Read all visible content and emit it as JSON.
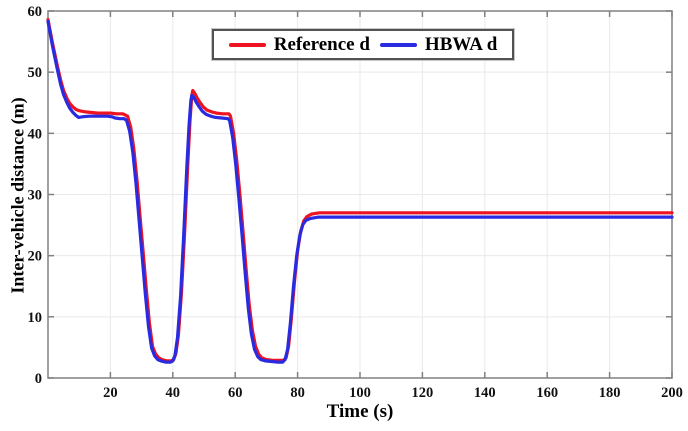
{
  "chart_data": {
    "type": "line",
    "title": "",
    "xlabel": "Time (s)",
    "ylabel": "Inter-vehicle distance (m)",
    "xlim": [
      0,
      200
    ],
    "ylim": [
      0,
      60
    ],
    "xticks": [
      20,
      40,
      60,
      80,
      100,
      120,
      140,
      160,
      180,
      200
    ],
    "yticks": [
      0,
      10,
      20,
      30,
      40,
      50,
      60
    ],
    "grid": true,
    "legend_position": "top-center",
    "axis_color": "#808080",
    "grid_color": "#e9e9e9",
    "series": [
      {
        "name": "Reference d",
        "color": "#ee1320",
        "points": [
          [
            0,
            58.6
          ],
          [
            1.5,
            54.6
          ],
          [
            3,
            51.0
          ],
          [
            4,
            48.8
          ],
          [
            5,
            47.0
          ],
          [
            6,
            45.8
          ],
          [
            7,
            44.9
          ],
          [
            8,
            44.3
          ],
          [
            9,
            43.9
          ],
          [
            10,
            43.7
          ],
          [
            12,
            43.5
          ],
          [
            14,
            43.4
          ],
          [
            16,
            43.3
          ],
          [
            18,
            43.3
          ],
          [
            20,
            43.3
          ],
          [
            22,
            43.2
          ],
          [
            24,
            43.2
          ],
          [
            25.5,
            42.8
          ],
          [
            26.5,
            41.0
          ],
          [
            27.5,
            37.5
          ],
          [
            28.5,
            32.5
          ],
          [
            29.5,
            26.5
          ],
          [
            30.5,
            20.5
          ],
          [
            31.5,
            14.5
          ],
          [
            32.5,
            9.0
          ],
          [
            33.5,
            5.2
          ],
          [
            34.5,
            3.9
          ],
          [
            35.5,
            3.3
          ],
          [
            36.5,
            3.0
          ],
          [
            38,
            2.8
          ],
          [
            39.5,
            2.8
          ],
          [
            40.3,
            3.0
          ],
          [
            41,
            4.0
          ],
          [
            41.8,
            7.0
          ],
          [
            42.8,
            14.0
          ],
          [
            43.8,
            24.0
          ],
          [
            44.8,
            35.0
          ],
          [
            45.5,
            42.0
          ],
          [
            46.1,
            46.2
          ],
          [
            46.4,
            47.0
          ],
          [
            47,
            46.6
          ],
          [
            47.8,
            45.8
          ],
          [
            48.8,
            45.0
          ],
          [
            49.8,
            44.3
          ],
          [
            51,
            43.8
          ],
          [
            52.5,
            43.5
          ],
          [
            54,
            43.3
          ],
          [
            56,
            43.2
          ],
          [
            58,
            43.2
          ],
          [
            58.5,
            42.8
          ],
          [
            59.5,
            40.0
          ],
          [
            60.5,
            35.5
          ],
          [
            61.5,
            30.0
          ],
          [
            62.5,
            24.0
          ],
          [
            63.5,
            17.8
          ],
          [
            64.5,
            12.0
          ],
          [
            65.5,
            7.8
          ],
          [
            66.5,
            5.2
          ],
          [
            67.5,
            3.9
          ],
          [
            68.5,
            3.3
          ],
          [
            70,
            3.0
          ],
          [
            72,
            2.9
          ],
          [
            74,
            2.9
          ],
          [
            75.5,
            2.9
          ],
          [
            76.3,
            3.3
          ],
          [
            77.1,
            5.2
          ],
          [
            78,
            9.8
          ],
          [
            79,
            15.8
          ],
          [
            80,
            20.8
          ],
          [
            81,
            24.0
          ],
          [
            82,
            25.7
          ],
          [
            83,
            26.4
          ],
          [
            84.5,
            26.8
          ],
          [
            87,
            27.0
          ],
          [
            95,
            27.0
          ],
          [
            120,
            27.0
          ],
          [
            160,
            27.0
          ],
          [
            200,
            27.0
          ]
        ]
      },
      {
        "name": "HBWA d",
        "color": "#2a2ae0",
        "points": [
          [
            0,
            58.3
          ],
          [
            1.5,
            54.1
          ],
          [
            3,
            50.4
          ],
          [
            4,
            48.1
          ],
          [
            5,
            46.3
          ],
          [
            6,
            45.1
          ],
          [
            7,
            44.1
          ],
          [
            8,
            43.4
          ],
          [
            9,
            42.9
          ],
          [
            9.8,
            42.6
          ],
          [
            11,
            42.7
          ],
          [
            13,
            42.8
          ],
          [
            16,
            42.8
          ],
          [
            19,
            42.8
          ],
          [
            20.5,
            42.7
          ],
          [
            21.5,
            42.5
          ],
          [
            23,
            42.4
          ],
          [
            24.5,
            42.4
          ],
          [
            25.2,
            42.1
          ],
          [
            26.2,
            40.3
          ],
          [
            27.2,
            36.8
          ],
          [
            28.2,
            31.8
          ],
          [
            29.2,
            25.8
          ],
          [
            30.2,
            19.8
          ],
          [
            31.2,
            13.8
          ],
          [
            32.2,
            8.4
          ],
          [
            33.2,
            4.9
          ],
          [
            34.2,
            3.6
          ],
          [
            35.2,
            3.0
          ],
          [
            36.2,
            2.8
          ],
          [
            37.7,
            2.6
          ],
          [
            39.3,
            2.6
          ],
          [
            40,
            2.8
          ],
          [
            40.7,
            3.7
          ],
          [
            41.5,
            6.6
          ],
          [
            42.5,
            13.4
          ],
          [
            43.5,
            23.4
          ],
          [
            44.5,
            34.4
          ],
          [
            45.2,
            41.2
          ],
          [
            45.8,
            45.4
          ],
          [
            46.1,
            46.2
          ],
          [
            46.7,
            45.9
          ],
          [
            47.5,
            45.1
          ],
          [
            48.5,
            44.3
          ],
          [
            49.5,
            43.6
          ],
          [
            50.7,
            43.1
          ],
          [
            52.2,
            42.8
          ],
          [
            53.7,
            42.6
          ],
          [
            55.7,
            42.5
          ],
          [
            57.7,
            42.4
          ],
          [
            58.2,
            42.1
          ],
          [
            59.2,
            39.3
          ],
          [
            60.2,
            34.8
          ],
          [
            61.2,
            29.3
          ],
          [
            62.2,
            23.3
          ],
          [
            63.2,
            17.1
          ],
          [
            64.2,
            11.4
          ],
          [
            65.2,
            7.2
          ],
          [
            66.2,
            4.7
          ],
          [
            67.2,
            3.5
          ],
          [
            68.2,
            3.0
          ],
          [
            69.7,
            2.8
          ],
          [
            71.7,
            2.7
          ],
          [
            73.7,
            2.6
          ],
          [
            75.2,
            2.6
          ],
          [
            76,
            3.0
          ],
          [
            76.8,
            4.7
          ],
          [
            77.7,
            9.0
          ],
          [
            78.7,
            15.0
          ],
          [
            79.7,
            20.0
          ],
          [
            80.7,
            23.3
          ],
          [
            81.7,
            25.1
          ],
          [
            82.7,
            25.8
          ],
          [
            84.2,
            26.1
          ],
          [
            86.7,
            26.3
          ],
          [
            95,
            26.3
          ],
          [
            120,
            26.3
          ],
          [
            160,
            26.3
          ],
          [
            200,
            26.3
          ]
        ]
      }
    ]
  }
}
